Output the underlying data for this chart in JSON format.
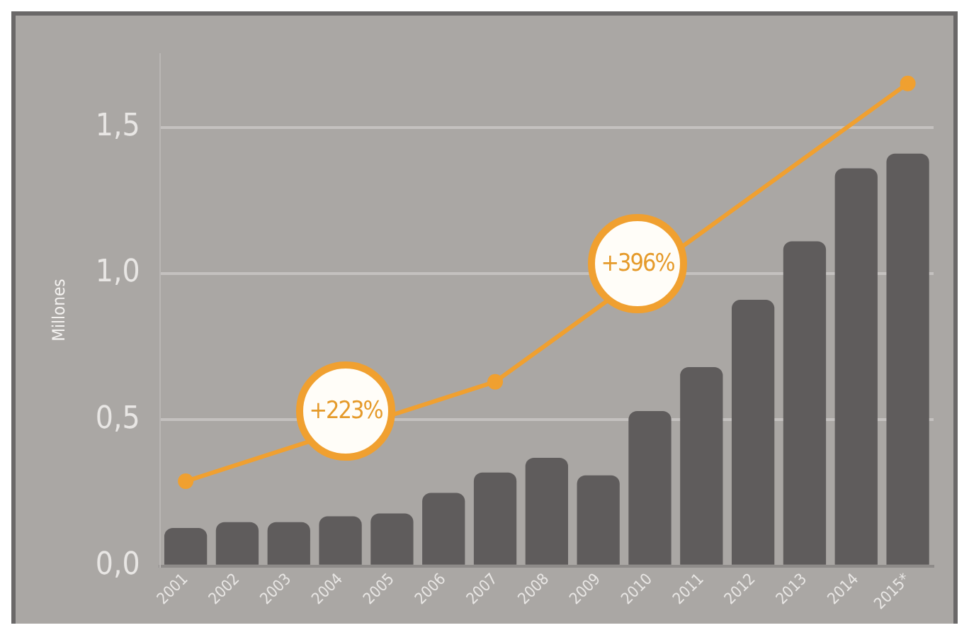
{
  "chart_data": {
    "type": "bar",
    "ylabel": "Millones",
    "categories": [
      "2001",
      "2002",
      "2003",
      "2004",
      "2005",
      "2006",
      "2007",
      "2008",
      "2009",
      "2010",
      "2011",
      "2012",
      "2013",
      "2014",
      "2015*"
    ],
    "series": [
      {
        "color": "#5f5c5c",
        "values": [
          0.13,
          0.15,
          0.15,
          0.17,
          0.18,
          0.25,
          0.32,
          0.37,
          0.31,
          0.53,
          0.68,
          0.91,
          1.11,
          1.36,
          1.41
        ]
      },
      {
        "type": "line",
        "color": "#f0a030",
        "values": [
          0.29,
          null,
          null,
          null,
          null,
          null,
          0.63,
          null,
          null,
          null,
          null,
          null,
          null,
          null,
          1.65
        ]
      }
    ],
    "ylim": [
      0,
      1.75
    ],
    "yticks": [
      {
        "value": 0,
        "label": "0,0"
      },
      {
        "value": 0.5,
        "label": "0,5"
      },
      {
        "value": 1,
        "label": "1,0"
      },
      {
        "value": 1.5,
        "label": "1,5"
      }
    ],
    "grid": "y",
    "legend": false,
    "marker": "circle",
    "line_style": "solid",
    "annotations": [
      "+223%",
      "+396%"
    ]
  }
}
